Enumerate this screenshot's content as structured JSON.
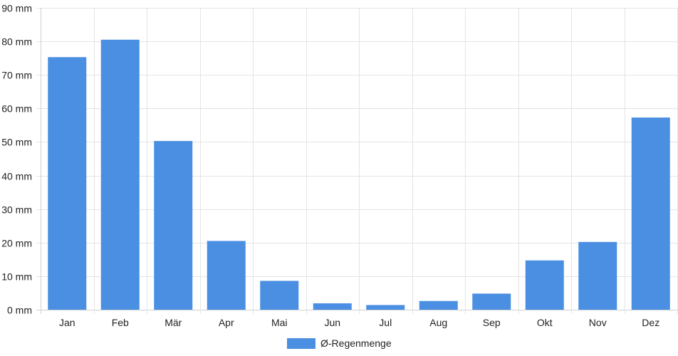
{
  "chart_data": {
    "type": "bar",
    "categories": [
      "Jan",
      "Feb",
      "Mär",
      "Apr",
      "Mai",
      "Jun",
      "Jul",
      "Aug",
      "Sep",
      "Okt",
      "Nov",
      "Dez"
    ],
    "series": [
      {
        "name": "Ø-Regenmenge",
        "color": "#4a8fe2",
        "values": [
          75.3,
          80.5,
          50.3,
          20.5,
          8.6,
          1.9,
          1.4,
          2.6,
          4.8,
          14.7,
          20.2,
          57.3
        ]
      }
    ],
    "y_unit": "mm",
    "ylim": [
      0,
      90
    ],
    "y_tick_step": 10,
    "grid": true,
    "legend_position": "bottom"
  }
}
